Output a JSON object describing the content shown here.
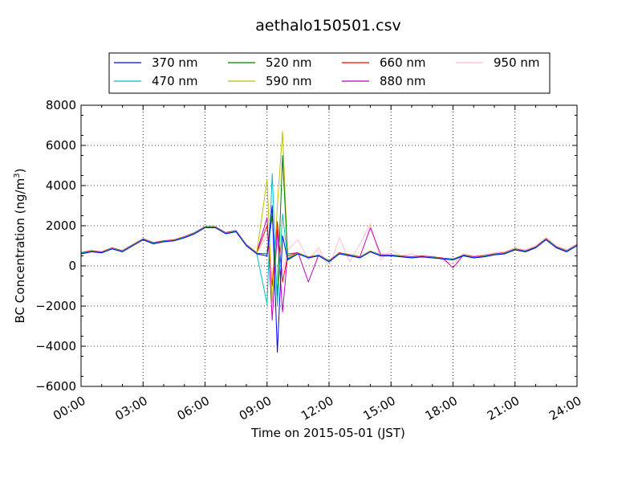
{
  "chart_data": {
    "type": "line",
    "title": "aethalo150501.csv",
    "xlabel": "Time on 2015-05-01 (JST)",
    "ylabel": "BC Concentration (ng/m",
    "ylabel_sup": "3",
    "ylabel_end": ")",
    "xlim": [
      "00:00",
      "24:00"
    ],
    "ylim": [
      -6000,
      8000
    ],
    "x_ticks": [
      "00:00",
      "03:00",
      "06:00",
      "09:00",
      "12:00",
      "15:00",
      "18:00",
      "21:00",
      "24:00"
    ],
    "y_ticks": [
      "8000",
      "6000",
      "4000",
      "2000",
      "0",
      "−2000",
      "−4000",
      "−6000"
    ],
    "grid": true,
    "legend_position": "top",
    "x": [
      "00:00",
      "00:30",
      "01:00",
      "01:30",
      "02:00",
      "02:30",
      "03:00",
      "03:30",
      "04:00",
      "04:30",
      "05:00",
      "05:30",
      "06:00",
      "06:30",
      "07:00",
      "07:30",
      "08:00",
      "08:30",
      "09:00",
      "09:15",
      "09:30",
      "09:45",
      "10:00",
      "10:30",
      "11:00",
      "11:30",
      "12:00",
      "12:30",
      "13:00",
      "13:30",
      "14:00",
      "14:30",
      "15:00",
      "15:30",
      "16:00",
      "16:30",
      "17:00",
      "17:30",
      "18:00",
      "18:30",
      "19:00",
      "19:30",
      "20:00",
      "20:30",
      "21:00",
      "21:30",
      "22:00",
      "22:30",
      "23:00",
      "23:30",
      "24:00"
    ],
    "series": [
      {
        "name": "370 nm",
        "color": "#0000ff",
        "values": [
          600,
          700,
          650,
          850,
          700,
          1000,
          1300,
          1100,
          1200,
          1250,
          1400,
          1600,
          1900,
          1900,
          1600,
          1700,
          1000,
          600,
          500,
          3000,
          -4300,
          1500,
          300,
          600,
          400,
          500,
          200,
          600,
          500,
          400,
          700,
          500,
          500,
          450,
          400,
          450,
          400,
          350,
          300,
          500,
          400,
          450,
          550,
          600,
          800,
          700,
          900,
          1300,
          900,
          700,
          1000
        ]
      },
      {
        "name": "470 nm",
        "color": "#00bfbf",
        "values": [
          620,
          720,
          660,
          860,
          720,
          1020,
          1310,
          1120,
          1210,
          1260,
          1420,
          1620,
          1920,
          1910,
          1620,
          1720,
          1020,
          620,
          -1900,
          4600,
          -2000,
          2600,
          300,
          620,
          420,
          510,
          220,
          620,
          520,
          420,
          720,
          520,
          510,
          460,
          420,
          460,
          410,
          360,
          320,
          510,
          420,
          470,
          560,
          620,
          810,
          710,
          910,
          1320,
          910,
          720,
          1020
        ]
      },
      {
        "name": "520 nm",
        "color": "#008000",
        "values": [
          630,
          730,
          670,
          870,
          730,
          1030,
          1320,
          1130,
          1220,
          1270,
          1430,
          1630,
          1930,
          1920,
          1630,
          1730,
          1030,
          630,
          600,
          2500,
          -1500,
          5500,
          350,
          630,
          430,
          520,
          230,
          630,
          530,
          430,
          730,
          530,
          520,
          470,
          430,
          470,
          420,
          370,
          330,
          520,
          430,
          480,
          570,
          630,
          820,
          720,
          920,
          1330,
          920,
          730,
          1030
        ]
      },
      {
        "name": "590 nm",
        "color": "#bfbf00",
        "values": [
          640,
          740,
          680,
          880,
          740,
          1040,
          1330,
          1140,
          1230,
          1280,
          1440,
          1640,
          1940,
          1930,
          1640,
          1740,
          1040,
          640,
          4300,
          -1800,
          3000,
          6700,
          400,
          640,
          440,
          530,
          240,
          640,
          540,
          440,
          740,
          540,
          530,
          480,
          440,
          480,
          430,
          380,
          340,
          530,
          440,
          490,
          580,
          640,
          830,
          730,
          930,
          1340,
          930,
          740,
          1040
        ]
      },
      {
        "name": "660 nm",
        "color": "#ff0000",
        "values": [
          650,
          750,
          690,
          890,
          750,
          1050,
          1340,
          1150,
          1240,
          1290,
          1450,
          1650,
          1950,
          1940,
          1650,
          1750,
          1050,
          650,
          2000,
          -1000,
          2200,
          -800,
          500,
          650,
          450,
          540,
          250,
          650,
          550,
          450,
          750,
          550,
          540,
          490,
          450,
          490,
          440,
          390,
          350,
          540,
          450,
          500,
          590,
          650,
          840,
          740,
          940,
          1350,
          940,
          750,
          1050
        ]
      },
      {
        "name": "880 nm",
        "color": "#bf00bf",
        "values": [
          660,
          760,
          700,
          900,
          760,
          1060,
          1350,
          1160,
          1250,
          1300,
          1460,
          1660,
          1960,
          1950,
          1660,
          1760,
          1060,
          660,
          2400,
          -2700,
          1800,
          -2300,
          600,
          660,
          -800,
          550,
          260,
          660,
          560,
          460,
          1900,
          560,
          550,
          500,
          460,
          500,
          450,
          400,
          -100,
          550,
          460,
          510,
          600,
          660,
          850,
          750,
          950,
          1360,
          950,
          760,
          1060
        ]
      },
      {
        "name": "950 nm",
        "color": "#ffc0cb",
        "values": [
          670,
          770,
          710,
          910,
          770,
          1070,
          1360,
          1170,
          1260,
          1310,
          1470,
          1670,
          1970,
          1960,
          1670,
          1770,
          1070,
          670,
          1500,
          -500,
          1200,
          -300,
          800,
          1300,
          300,
          900,
          -100,
          1400,
          200,
          1100,
          2100,
          300,
          800,
          500,
          600,
          400,
          500,
          300,
          100,
          600,
          500,
          550,
          650,
          700,
          900,
          800,
          1000,
          1400,
          1000,
          800,
          1100
        ]
      }
    ]
  }
}
